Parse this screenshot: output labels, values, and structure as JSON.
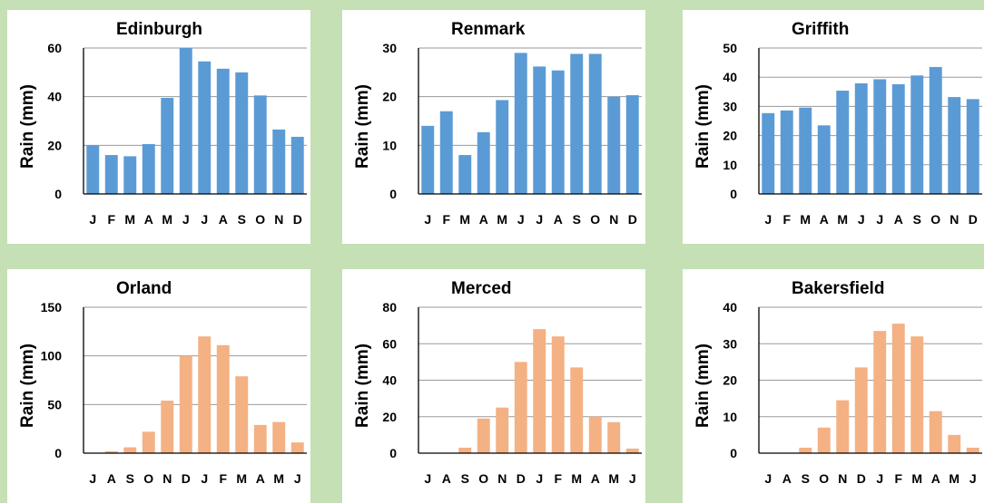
{
  "colors": {
    "blue": "#5b9bd5",
    "orange": "#f4b183",
    "background": "#c5e0b4",
    "panel": "#ffffff"
  },
  "chart_data": [
    {
      "type": "bar",
      "title": "Edinburgh",
      "xlabel": "",
      "ylabel": "Rain (mm)",
      "ylim": [
        0,
        60
      ],
      "yticks": [
        0,
        20,
        40,
        60
      ],
      "grid": true,
      "color": "#5b9bd5",
      "categories": [
        "J",
        "F",
        "M",
        "A",
        "M",
        "J",
        "J",
        "A",
        "S",
        "O",
        "N",
        "D"
      ],
      "values": [
        20,
        16,
        15.5,
        20.5,
        39.5,
        60,
        54.5,
        51.5,
        50,
        40.5,
        26.5,
        23.5
      ]
    },
    {
      "type": "bar",
      "title": "Renmark",
      "xlabel": "",
      "ylabel": "Rain (mm)",
      "ylim": [
        0,
        30
      ],
      "yticks": [
        0,
        10,
        20,
        30
      ],
      "grid": true,
      "color": "#5b9bd5",
      "categories": [
        "J",
        "F",
        "M",
        "A",
        "M",
        "J",
        "J",
        "A",
        "S",
        "O",
        "N",
        "D"
      ],
      "values": [
        14,
        17,
        8,
        12.7,
        19.3,
        29,
        26.2,
        25.4,
        28.8,
        28.8,
        20,
        20.3
      ]
    },
    {
      "type": "bar",
      "title": "Griffith",
      "xlabel": "",
      "ylabel": "Rain (mm)",
      "ylim": [
        0,
        50
      ],
      "yticks": [
        0,
        10,
        20,
        30,
        40,
        50
      ],
      "grid": true,
      "color": "#5b9bd5",
      "categories": [
        "J",
        "F",
        "M",
        "A",
        "M",
        "J",
        "J",
        "A",
        "S",
        "O",
        "N",
        "D"
      ],
      "values": [
        27.7,
        28.6,
        29.6,
        23.5,
        35.4,
        37.9,
        39.3,
        37.6,
        40.6,
        43.5,
        33.2,
        32.5
      ]
    },
    {
      "type": "bar",
      "title": "Orland",
      "xlabel": "",
      "ylabel": "Rain (mm)",
      "ylim": [
        0,
        150
      ],
      "yticks": [
        0,
        50,
        100,
        150
      ],
      "grid": true,
      "color": "#f4b183",
      "categories": [
        "J",
        "A",
        "S",
        "O",
        "N",
        "D",
        "J",
        "F",
        "M",
        "A",
        "M",
        "J"
      ],
      "values": [
        0,
        2,
        6,
        22,
        54,
        100,
        120,
        111,
        79,
        29,
        32,
        11
      ]
    },
    {
      "type": "bar",
      "title": "Merced",
      "xlabel": "",
      "ylabel": "Rain (mm)",
      "ylim": [
        0,
        80
      ],
      "yticks": [
        0,
        20,
        40,
        60,
        80
      ],
      "grid": true,
      "color": "#f4b183",
      "categories": [
        "J",
        "A",
        "S",
        "O",
        "N",
        "D",
        "J",
        "F",
        "M",
        "A",
        "M",
        "J"
      ],
      "values": [
        0,
        0,
        3,
        19,
        25,
        50,
        68,
        64,
        47,
        20,
        17,
        2.5
      ]
    },
    {
      "type": "bar",
      "title": "Bakersfield",
      "xlabel": "",
      "ylabel": "Rain (mm)",
      "ylim": [
        0,
        40
      ],
      "yticks": [
        0,
        10,
        20,
        30,
        40
      ],
      "grid": true,
      "color": "#f4b183",
      "categories": [
        "J",
        "A",
        "S",
        "O",
        "N",
        "D",
        "J",
        "F",
        "M",
        "A",
        "M",
        "J"
      ],
      "values": [
        0,
        0,
        1.5,
        7,
        14.5,
        23.5,
        33.5,
        35.5,
        32,
        11.5,
        5,
        1.5
      ]
    }
  ]
}
